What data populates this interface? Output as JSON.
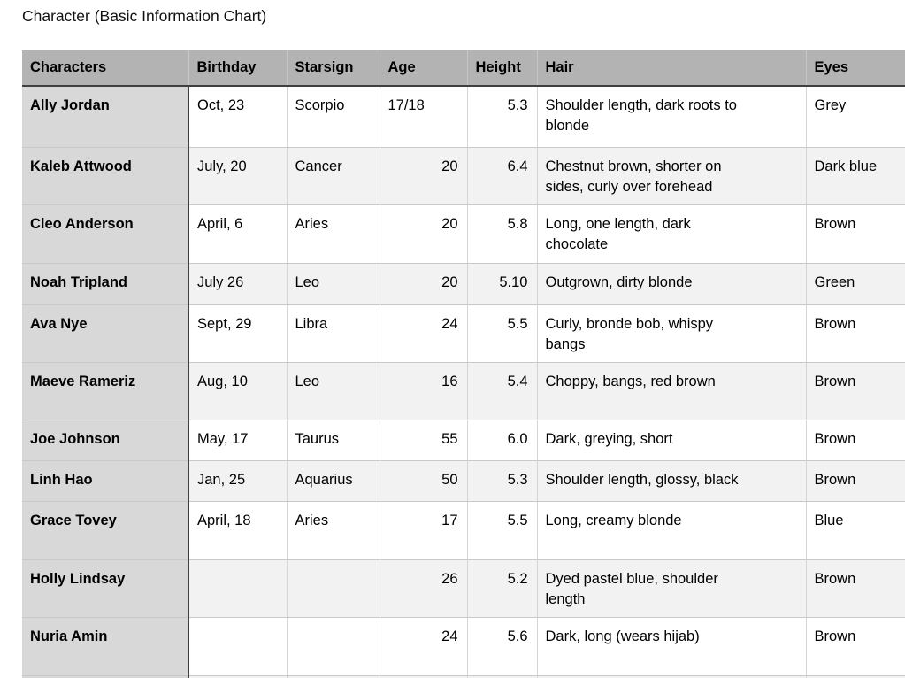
{
  "title": "Character (Basic Information Chart)",
  "table": {
    "columns": [
      "Characters",
      "Birthday",
      "Starsign",
      "Age",
      "Height",
      "Hair",
      "Eyes"
    ],
    "rows": [
      {
        "character": "Ally Jordan",
        "birthday": "Oct, 23",
        "starsign": "Scorpio",
        "age": "17/18",
        "height": "5.3",
        "hair": "Shoulder length, dark roots to blonde",
        "eyes": "Grey"
      },
      {
        "character": "Kaleb Attwood",
        "birthday": "July, 20",
        "starsign": "Cancer",
        "age": "20",
        "height": "6.4",
        "hair": "Chestnut brown, shorter on sides, curly over forehead",
        "eyes": "Dark blue"
      },
      {
        "character": "Cleo Anderson",
        "birthday": "April, 6",
        "starsign": "Aries",
        "age": "20",
        "height": "5.8",
        "hair": "Long, one length, dark chocolate",
        "eyes": "Brown"
      },
      {
        "character": "Noah Tripland",
        "birthday": "July 26",
        "starsign": "Leo",
        "age": "20",
        "height": "5.10",
        "hair": "Outgrown, dirty blonde",
        "eyes": "Green"
      },
      {
        "character": "Ava Nye",
        "birthday": "Sept, 29",
        "starsign": "Libra",
        "age": "24",
        "height": "5.5",
        "hair": "Curly, bronde bob, whispy bangs",
        "eyes": "Brown"
      },
      {
        "character": "Maeve Rameriz",
        "birthday": "Aug, 10",
        "starsign": "Leo",
        "age": "16",
        "height": "5.4",
        "hair": "Choppy, bangs, red brown",
        "eyes": "Brown"
      },
      {
        "character": "Joe Johnson",
        "birthday": "May, 17",
        "starsign": "Taurus",
        "age": "55",
        "height": "6.0",
        "hair": "Dark, greying, short",
        "eyes": "Brown"
      },
      {
        "character": "Linh Hao",
        "birthday": "Jan, 25",
        "starsign": "Aquarius",
        "age": "50",
        "height": "5.3",
        "hair": "Shoulder length, glossy, black",
        "eyes": "Brown"
      },
      {
        "character": "Grace Tovey",
        "birthday": "April, 18",
        "starsign": "Aries",
        "age": "17",
        "height": "5.5",
        "hair": "Long, creamy blonde",
        "eyes": "Blue"
      },
      {
        "character": "Holly Lindsay",
        "birthday": "",
        "starsign": "",
        "age": "26",
        "height": "5.2",
        "hair": "Dyed pastel blue, shoulder length",
        "eyes": "Brown"
      },
      {
        "character": "Nuria Amin",
        "birthday": "",
        "starsign": "",
        "age": "24",
        "height": "5.6",
        "hair": "Dark, long (wears hijab)",
        "eyes": "Brown"
      }
    ]
  },
  "colors": {
    "header_bg": "#b3b3b3",
    "first_column_bg": "#d8d8d8",
    "alt_row_bg": "#f2f2f2",
    "dark_border": "#3f3f3f",
    "light_border": "#c9c9c9"
  }
}
